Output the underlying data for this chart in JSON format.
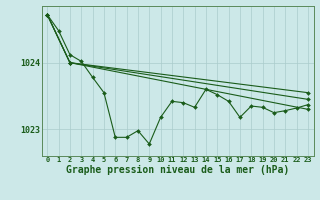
{
  "background_color": "#cce8e8",
  "grid_color": "#aacccc",
  "line_color": "#1a5c1a",
  "marker_color": "#1a5c1a",
  "xlabel": "Graphe pression niveau de la mer (hPa)",
  "xlabel_fontsize": 7,
  "xlim": [
    -0.5,
    23.5
  ],
  "ylim": [
    1022.6,
    1024.85
  ],
  "yticks": [
    1023,
    1024
  ],
  "xticks": [
    0,
    1,
    2,
    3,
    4,
    5,
    6,
    7,
    8,
    9,
    10,
    11,
    12,
    13,
    14,
    15,
    16,
    17,
    18,
    19,
    20,
    21,
    22,
    23
  ],
  "series1_x": [
    0,
    1,
    2,
    3,
    4,
    5,
    6,
    7,
    8,
    9,
    10,
    11,
    12,
    13,
    14,
    15,
    16,
    17,
    18,
    19,
    20,
    21,
    22,
    23
  ],
  "series1_y": [
    1024.72,
    1024.48,
    1024.12,
    1024.02,
    1023.78,
    1023.55,
    1022.88,
    1022.88,
    1022.98,
    1022.78,
    1023.18,
    1023.42,
    1023.4,
    1023.33,
    1023.6,
    1023.52,
    1023.42,
    1023.18,
    1023.35,
    1023.33,
    1023.25,
    1023.28,
    1023.32,
    1023.37
  ],
  "series2_x": [
    0,
    2,
    23
  ],
  "series2_y": [
    1024.72,
    1024.0,
    1023.55
  ],
  "series3_x": [
    0,
    2,
    23
  ],
  "series3_y": [
    1024.72,
    1024.0,
    1023.45
  ],
  "series4_x": [
    0,
    2,
    23
  ],
  "series4_y": [
    1024.72,
    1024.0,
    1023.3
  ],
  "marker_size": 2,
  "line_width": 0.8
}
